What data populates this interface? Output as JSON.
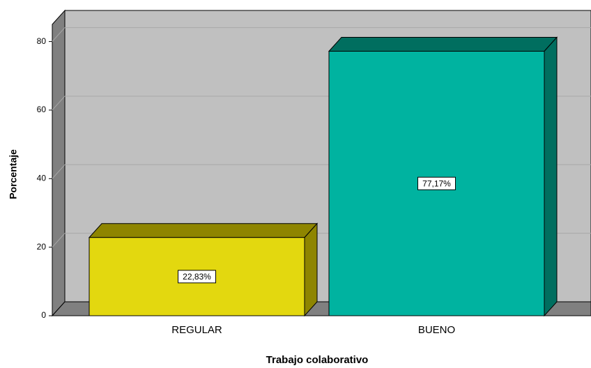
{
  "chart_data": {
    "type": "bar3d",
    "categories": [
      "REGULAR",
      "BUENO"
    ],
    "values": [
      22.83,
      77.17
    ],
    "value_labels": [
      "22,83%",
      "77,17%"
    ],
    "colors": [
      "#e3d80f",
      "#00b3a0"
    ],
    "side_colors": [
      "#8e8500",
      "#006e5f"
    ],
    "xlabel": "Trabajo colaborativo",
    "ylabel": "Porcentaje",
    "ylim": [
      0,
      85
    ],
    "yticks": [
      0,
      20,
      40,
      60,
      80
    ],
    "grid": true
  }
}
